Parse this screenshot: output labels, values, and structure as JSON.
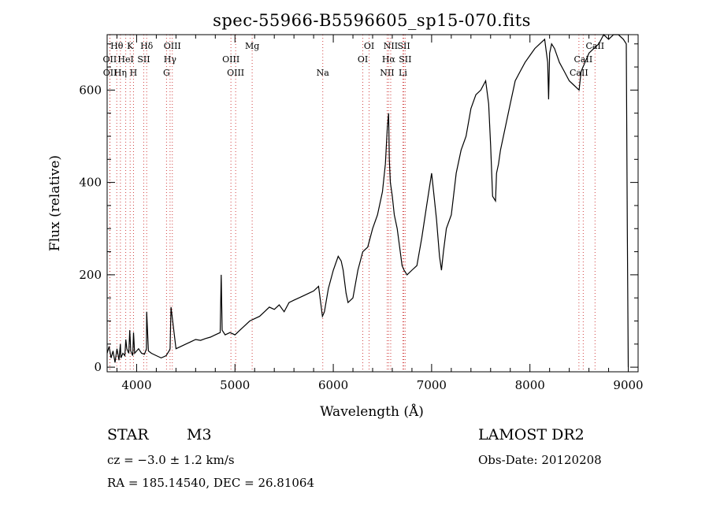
{
  "chart_data": {
    "type": "line",
    "title": "spec-55966-B5596605_sp15-070.fits",
    "xlabel": "Wavelength (Å)",
    "ylabel": "Flux (relative)",
    "xlim": [
      3700,
      9100
    ],
    "ylim": [
      -10,
      720
    ],
    "xticks": [
      4000,
      5000,
      6000,
      7000,
      8000,
      9000
    ],
    "yticks": [
      0,
      200,
      400,
      600
    ],
    "xtick_labels": [
      "4000",
      "5000",
      "6000",
      "7000",
      "8000",
      "9000"
    ],
    "ytick_labels": [
      "0",
      "200",
      "400",
      "600"
    ],
    "series": [
      {
        "name": "flux",
        "x": [
          3700,
          3720,
          3740,
          3760,
          3780,
          3800,
          3820,
          3835,
          3840,
          3860,
          3880,
          3890,
          3900,
          3920,
          3930,
          3940,
          3960,
          3968,
          3980,
          4000,
          4020,
          4050,
          4080,
          4100,
          4102,
          4120,
          4150,
          4200,
          4250,
          4300,
          4330,
          4340,
          4350,
          4400,
          4450,
          4500,
          4550,
          4600,
          4650,
          4700,
          4750,
          4800,
          4850,
          4860,
          4870,
          4900,
          4950,
          5000,
          5050,
          5100,
          5150,
          5200,
          5250,
          5300,
          5350,
          5400,
          5450,
          5500,
          5550,
          5600,
          5650,
          5700,
          5750,
          5800,
          5850,
          5890,
          5910,
          5950,
          6000,
          6050,
          6080,
          6100,
          6130,
          6150,
          6200,
          6250,
          6300,
          6350,
          6400,
          6450,
          6500,
          6530,
          6550,
          6563,
          6570,
          6580,
          6600,
          6620,
          6650,
          6700,
          6720,
          6750,
          6800,
          6850,
          6900,
          6950,
          7000,
          7020,
          7050,
          7080,
          7100,
          7120,
          7150,
          7200,
          7250,
          7300,
          7350,
          7400,
          7450,
          7500,
          7550,
          7580,
          7600,
          7620,
          7650,
          7660,
          7680,
          7700,
          7750,
          7800,
          7850,
          7900,
          7950,
          8000,
          8050,
          8100,
          8150,
          8180,
          8190,
          8200,
          8220,
          8250,
          8300,
          8350,
          8400,
          8450,
          8500,
          8520,
          8540,
          8560,
          8600,
          8650,
          8700,
          8750,
          8800,
          8850,
          8900,
          8950,
          8980,
          8990,
          9000
        ],
        "y": [
          30,
          45,
          20,
          35,
          10,
          40,
          15,
          50,
          20,
          30,
          25,
          60,
          40,
          30,
          80,
          35,
          25,
          75,
          30,
          35,
          40,
          30,
          28,
          40,
          120,
          35,
          30,
          25,
          20,
          25,
          35,
          40,
          130,
          40,
          45,
          50,
          55,
          60,
          58,
          62,
          65,
          70,
          75,
          200,
          80,
          70,
          75,
          70,
          80,
          90,
          100,
          105,
          110,
          120,
          130,
          125,
          135,
          120,
          140,
          145,
          150,
          155,
          160,
          165,
          175,
          110,
          120,
          170,
          210,
          240,
          230,
          210,
          160,
          140,
          150,
          210,
          250,
          260,
          300,
          330,
          380,
          440,
          520,
          550,
          450,
          400,
          370,
          330,
          300,
          220,
          210,
          200,
          210,
          220,
          280,
          350,
          420,
          380,
          320,
          240,
          210,
          250,
          300,
          330,
          420,
          470,
          500,
          560,
          590,
          600,
          620,
          570,
          480,
          370,
          360,
          420,
          440,
          470,
          520,
          570,
          620,
          640,
          660,
          675,
          690,
          700,
          710,
          660,
          580,
          680,
          700,
          690,
          660,
          640,
          620,
          610,
          600,
          640,
          650,
          660,
          680,
          690,
          700,
          720,
          710,
          720,
          720,
          710,
          700,
          300,
          0
        ]
      }
    ],
    "spectral_lines": [
      {
        "name": "Hθ",
        "wavelength": 3798,
        "row": 1
      },
      {
        "name": "K",
        "wavelength": 3934,
        "row": 1
      },
      {
        "name": "Hδ",
        "wavelength": 4102,
        "row": 1
      },
      {
        "name": "OIII",
        "wavelength": 4363,
        "row": 1
      },
      {
        "name": "Mg",
        "wavelength": 5175,
        "row": 1
      },
      {
        "name": "OI",
        "wavelength": 6364,
        "row": 1
      },
      {
        "name": "NII",
        "wavelength": 6584,
        "row": 1
      },
      {
        "name": "SII",
        "wavelength": 6717,
        "row": 1
      },
      {
        "name": "CaII",
        "wavelength": 8662,
        "row": 1
      },
      {
        "name": "OII",
        "wavelength": 3727,
        "row": 2
      },
      {
        "name": "HeI",
        "wavelength": 3889,
        "row": 2
      },
      {
        "name": "SII",
        "wavelength": 4072,
        "row": 2
      },
      {
        "name": "Hγ",
        "wavelength": 4340,
        "row": 2
      },
      {
        "name": "OIII",
        "wavelength": 4959,
        "row": 2
      },
      {
        "name": "OI",
        "wavelength": 6300,
        "row": 2
      },
      {
        "name": "Hα",
        "wavelength": 6563,
        "row": 2
      },
      {
        "name": "SII",
        "wavelength": 6731,
        "row": 2
      },
      {
        "name": "CaII",
        "wavelength": 8542,
        "row": 2
      },
      {
        "name": "OII",
        "wavelength": 3729,
        "row": 3
      },
      {
        "name": "Hη",
        "wavelength": 3835,
        "row": 3
      },
      {
        "name": "H",
        "wavelength": 3968,
        "row": 3
      },
      {
        "name": "G",
        "wavelength": 4304,
        "row": 3
      },
      {
        "name": "OIII",
        "wavelength": 5007,
        "row": 3
      },
      {
        "name": "Na",
        "wavelength": 5893,
        "row": 3
      },
      {
        "name": "NII",
        "wavelength": 6548,
        "row": 3
      },
      {
        "name": "Li",
        "wavelength": 6708,
        "row": 3
      },
      {
        "name": "CaII",
        "wavelength": 8498,
        "row": 3
      }
    ]
  },
  "footer": {
    "object_class": "STAR",
    "subclass": "M3",
    "survey": "LAMOST DR2",
    "redshift": "cz = −3.0 ± 1.2 km/s",
    "obs_date": "Obs-Date: 20120208",
    "coords": "RA = 185.14540, DEC =  26.81064"
  }
}
